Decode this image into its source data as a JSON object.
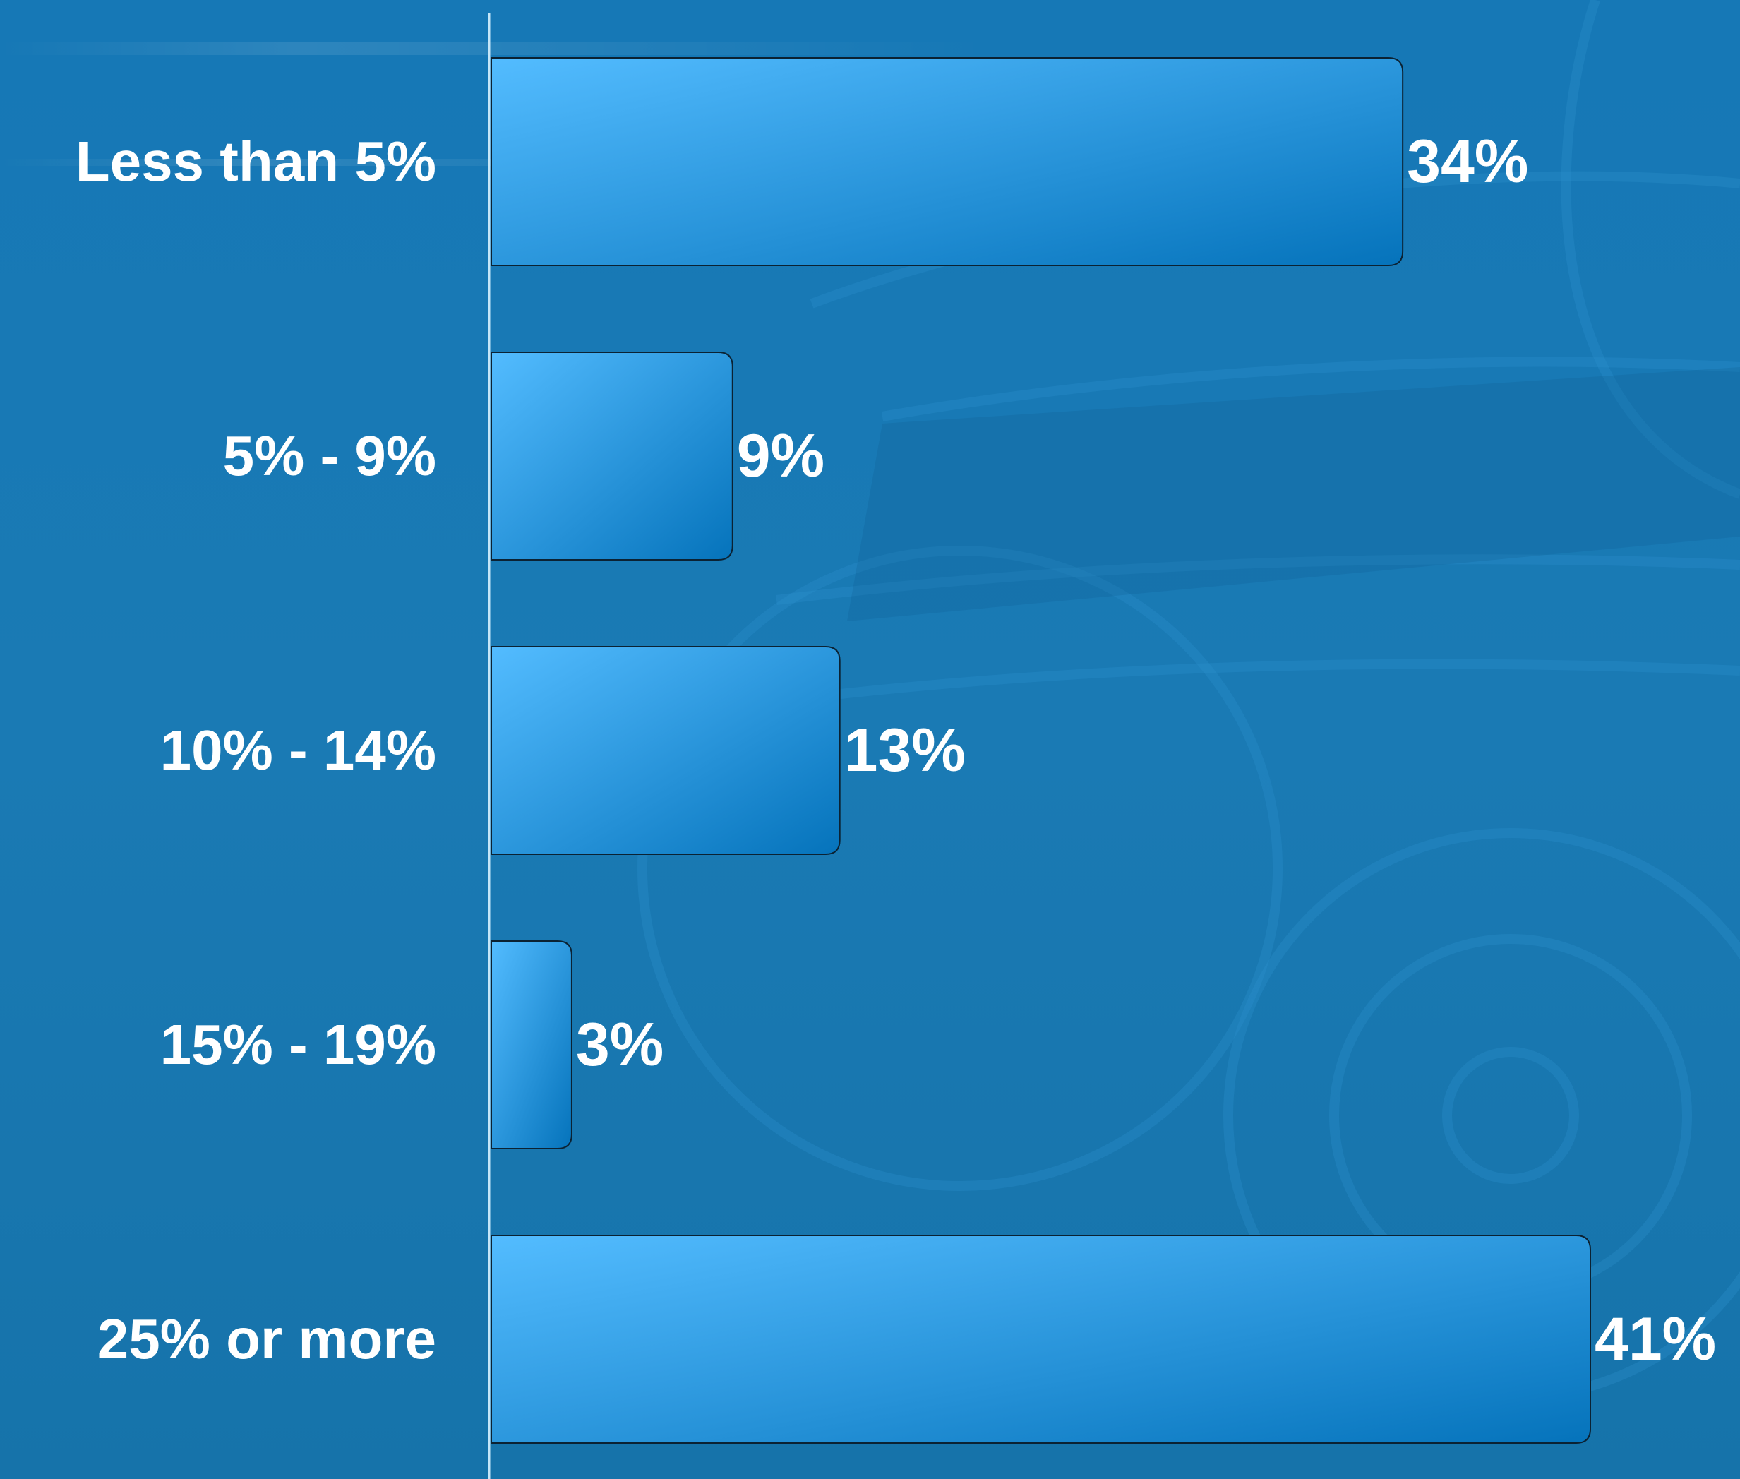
{
  "colors": {
    "background": "#1777b3",
    "bar_light": "#53bcff",
    "bar_dark": "#0573bb",
    "bar_stroke": "#0b2233",
    "axis_line": "#c5e6f8",
    "text": "#ffffff"
  },
  "chart_data": {
    "type": "bar",
    "orientation": "horizontal",
    "categories": [
      "Less than 5%",
      "5% - 9%",
      "10% - 14%",
      "15% - 19%",
      "25% or more"
    ],
    "values": [
      34,
      9,
      13,
      3,
      41
    ],
    "value_labels": [
      "34%",
      "9%",
      "13%",
      "3%",
      "41%"
    ],
    "unit": "%",
    "xlim": [
      0,
      41
    ],
    "grid": false,
    "legend": "none"
  }
}
